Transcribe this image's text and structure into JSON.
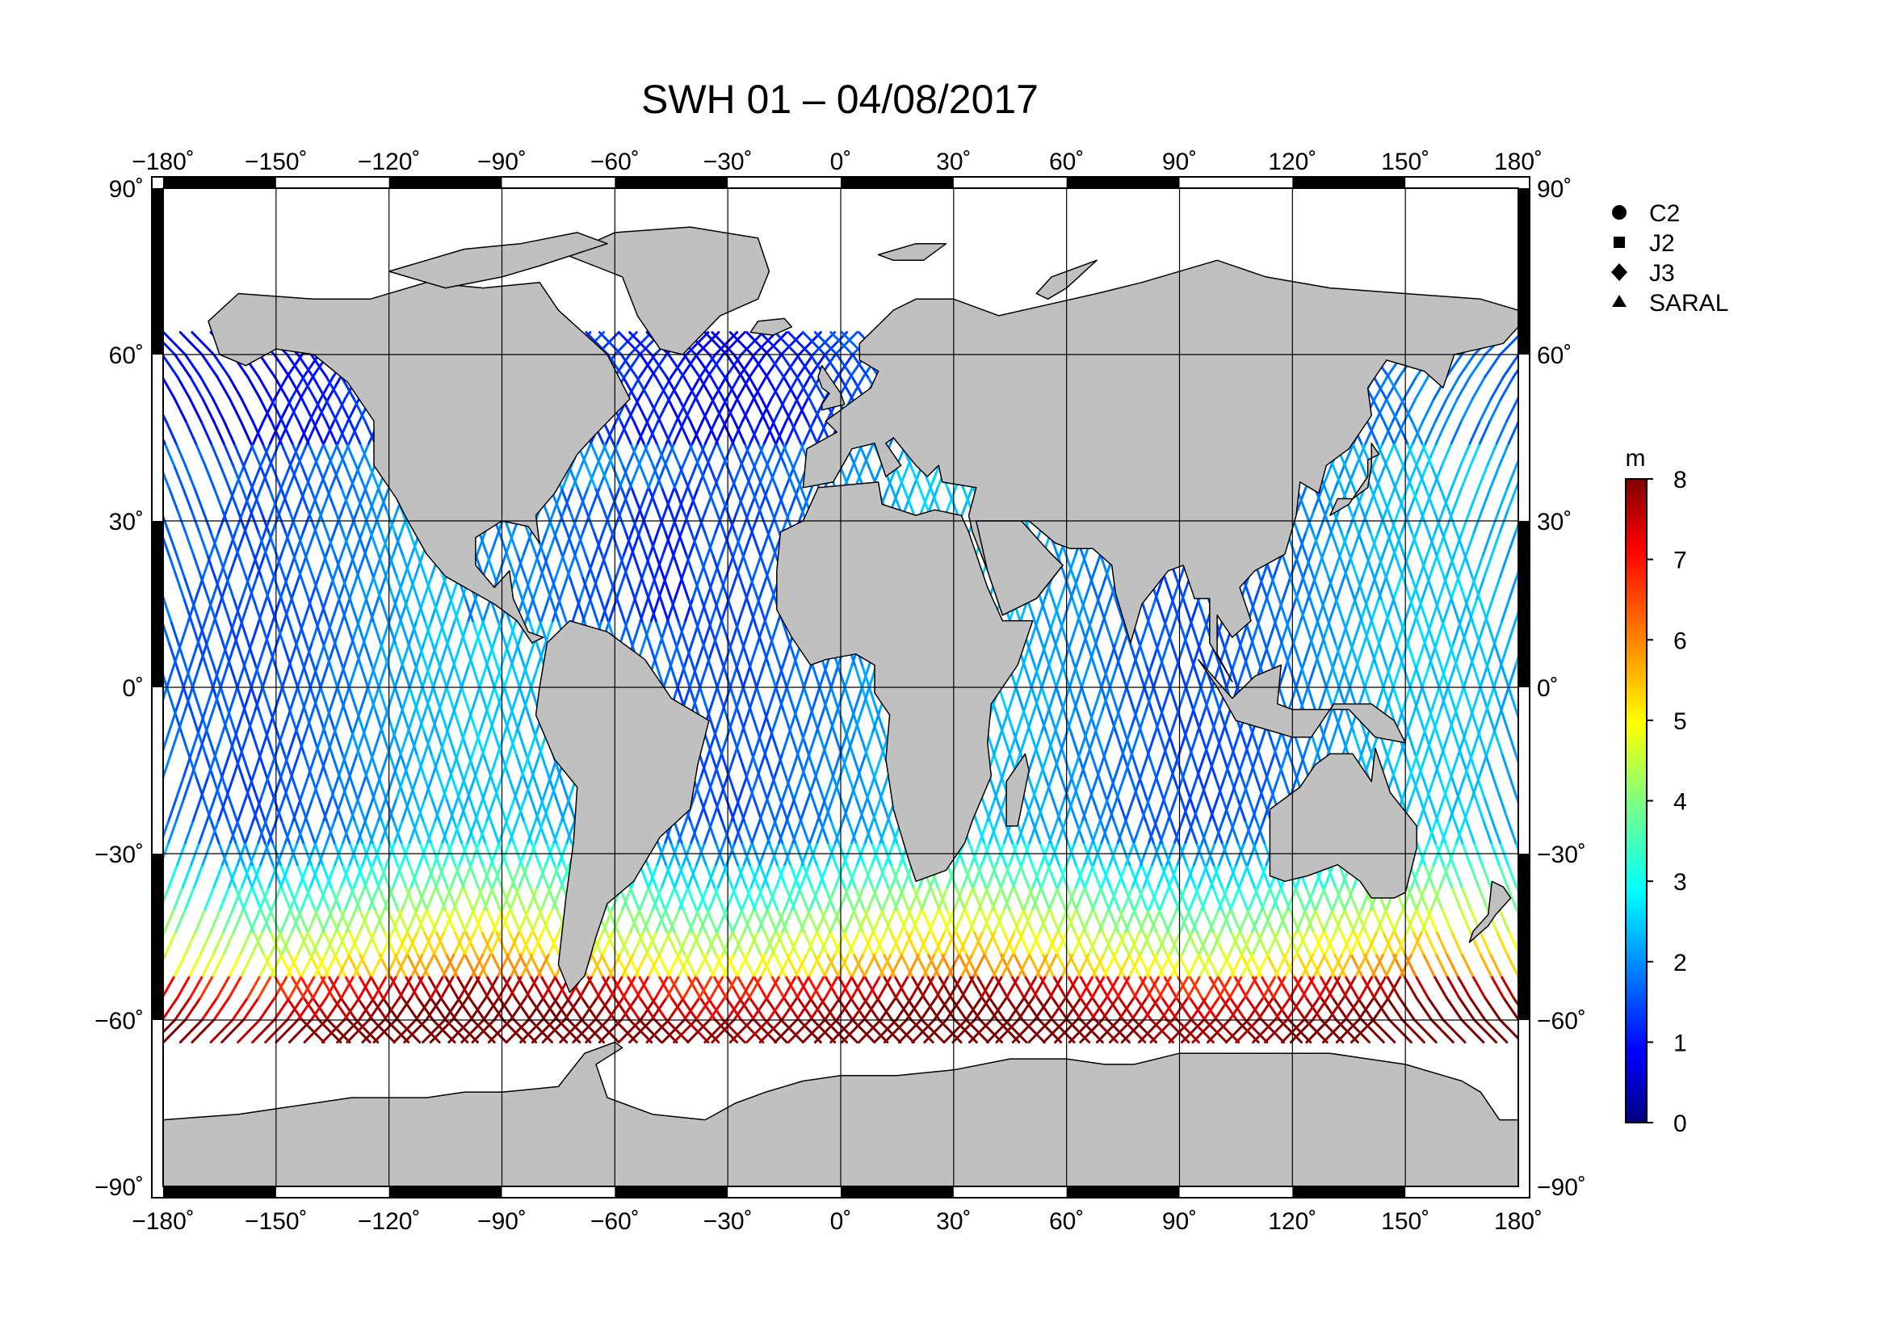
{
  "title": "SWH 01 – 04/08/2017",
  "map": {
    "projection": "equirectangular",
    "lon_range": [
      -180,
      180
    ],
    "lat_range": [
      -90,
      90
    ],
    "lon_ticks": [
      "−180˚",
      "−150˚",
      "−120˚",
      "−90˚",
      "−60˚",
      "−30˚",
      "0˚",
      "30˚",
      "60˚",
      "90˚",
      "120˚",
      "150˚",
      "180˚"
    ],
    "lat_ticks": [
      "90˚",
      "60˚",
      "30˚",
      "0˚",
      "−30˚",
      "−60˚",
      "−90˚"
    ],
    "land_color": "#c0c0c0",
    "ocean_color": "#ffffff",
    "grid": true
  },
  "legend": {
    "items": [
      {
        "label": "C2",
        "marker": "circle"
      },
      {
        "label": "J2",
        "marker": "square"
      },
      {
        "label": "J3",
        "marker": "diamond"
      },
      {
        "label": "SARAL",
        "marker": "triangle"
      }
    ]
  },
  "colorbar": {
    "unit": "m",
    "min": 0,
    "max": 8,
    "ticks": [
      "0",
      "1",
      "2",
      "3",
      "4",
      "5",
      "6",
      "7",
      "8"
    ],
    "colormap": "jet"
  }
}
